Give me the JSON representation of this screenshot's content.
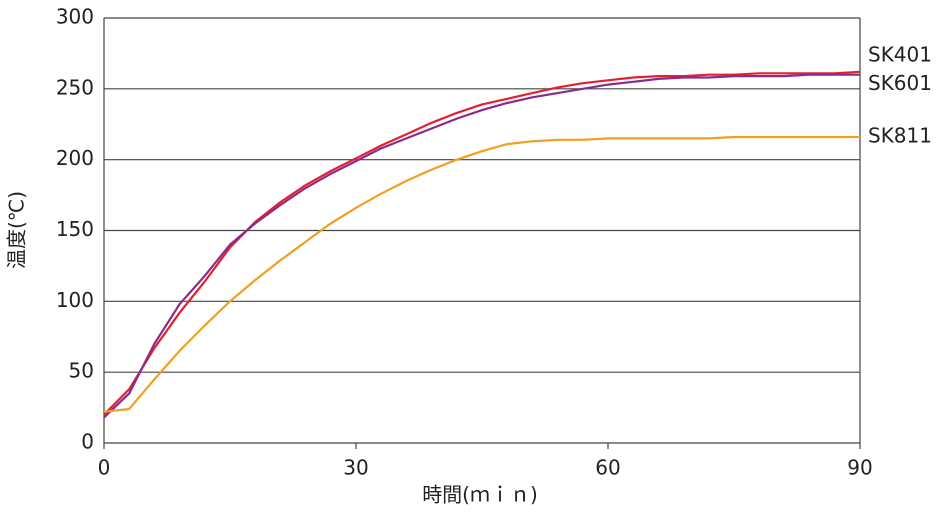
{
  "chart_data": {
    "type": "line",
    "xlabel": "時間(ｍｉｎ)",
    "ylabel": "温度(℃)",
    "x": [
      0,
      3,
      6,
      9,
      12,
      15,
      18,
      21,
      24,
      27,
      30,
      33,
      36,
      39,
      42,
      45,
      48,
      51,
      54,
      57,
      60,
      63,
      66,
      69,
      72,
      75,
      78,
      81,
      84,
      87,
      90
    ],
    "series": [
      {
        "name": "SK401",
        "color": "#e3202d",
        "values": [
          20,
          38,
          67,
          92,
          114,
          138,
          156,
          170,
          182,
          192,
          201,
          210,
          218,
          226,
          233,
          239,
          243,
          247,
          251,
          254,
          256,
          258,
          259,
          259,
          260,
          260,
          261,
          261,
          261,
          261,
          262
        ]
      },
      {
        "name": "SK601",
        "color": "#8a2b8e",
        "values": [
          18,
          35,
          70,
          98,
          118,
          140,
          155,
          168,
          180,
          190,
          199,
          208,
          215,
          222,
          229,
          235,
          240,
          244,
          247,
          250,
          253,
          255,
          257,
          258,
          258,
          259,
          259,
          259,
          260,
          260,
          260
        ]
      },
      {
        "name": "SK811",
        "color": "#f0a01e",
        "values": [
          22,
          24,
          45,
          65,
          83,
          100,
          115,
          129,
          142,
          155,
          166,
          176,
          185,
          193,
          200,
          206,
          211,
          213,
          214,
          214,
          215,
          215,
          215,
          215,
          215,
          216,
          216,
          216,
          216,
          216,
          216
        ]
      }
    ],
    "xlim": [
      0,
      90
    ],
    "xticks": [
      0,
      30,
      60,
      90
    ],
    "ylim": [
      0,
      300
    ],
    "yticks": [
      0,
      50,
      100,
      150,
      200,
      250,
      300
    ],
    "grid": true,
    "legend": "right-end"
  }
}
